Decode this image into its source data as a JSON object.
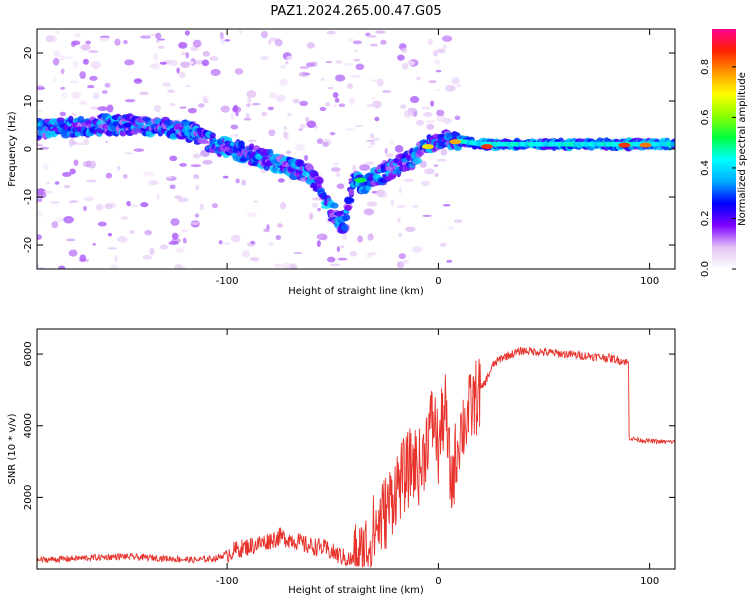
{
  "title": "PAZ1.2024.265.00.47.G05",
  "chart_data": [
    {
      "type": "heatmap",
      "xlabel": "Height of straight line (km)",
      "ylabel": "Frequency (Hz)",
      "xlim": [
        -190,
        112
      ],
      "ylim": [
        -25,
        25
      ],
      "xticks": [
        -100,
        0,
        100
      ],
      "yticks": [
        -20,
        -10,
        0,
        10,
        20
      ],
      "colorbar": {
        "label": "Normalized spectral amplitude",
        "range": [
          0,
          0.95
        ],
        "ticks": [
          0.0,
          0.2,
          0.4,
          0.6,
          0.8
        ],
        "colors": [
          "#ffffff",
          "#e2c2f4",
          "#7d00ff",
          "#0000ff",
          "#00aaff",
          "#00ffff",
          "#00ff44",
          "#88ff00",
          "#ffff00",
          "#ff9900",
          "#ff2200",
          "#ff0090"
        ]
      },
      "ridge": [
        {
          "x": -190,
          "y": 4
        },
        {
          "x": -160,
          "y": 5
        },
        {
          "x": -140,
          "y": 5
        },
        {
          "x": -120,
          "y": 4
        },
        {
          "x": -105,
          "y": 1
        },
        {
          "x": -90,
          "y": -1
        },
        {
          "x": -75,
          "y": -3
        },
        {
          "x": -62,
          "y": -5
        },
        {
          "x": -55,
          "y": -9
        },
        {
          "x": -50,
          "y": -13
        },
        {
          "x": -45,
          "y": -16
        },
        {
          "x": -40,
          "y": -6
        },
        {
          "x": -35,
          "y": -8
        },
        {
          "x": -30,
          "y": -6
        },
        {
          "x": -22,
          "y": -4
        },
        {
          "x": -12,
          "y": -2
        },
        {
          "x": -5,
          "y": 1
        },
        {
          "x": 5,
          "y": 2
        },
        {
          "x": 20,
          "y": 1
        },
        {
          "x": 60,
          "y": 1
        },
        {
          "x": 112,
          "y": 1
        }
      ],
      "peaks": [
        {
          "x": 23,
          "y": 0.5,
          "amp": 0.9
        },
        {
          "x": 88,
          "y": 0.8,
          "amp": 0.9
        },
        {
          "x": 98,
          "y": 0.8,
          "amp": 0.85
        },
        {
          "x": 8,
          "y": 1.5,
          "amp": 0.8
        },
        {
          "x": -5,
          "y": 0.5,
          "amp": 0.75
        },
        {
          "x": -37,
          "y": -6.5,
          "amp": 0.55
        }
      ]
    },
    {
      "type": "line",
      "xlabel": "Height of straight line (km)",
      "ylabel": "SNR (10 * v/v)",
      "xlim": [
        -190,
        112
      ],
      "ylim": [
        0,
        6700
      ],
      "xticks": [
        -100,
        0,
        100
      ],
      "yticks": [
        2000,
        4000,
        6000
      ],
      "color": "#e8332c",
      "series": [
        {
          "x": [
            -190,
            -170,
            -150,
            -130,
            -115,
            -105,
            -95,
            -85,
            -75,
            -68,
            -62,
            -55,
            -48,
            -42,
            -36,
            -32,
            -28,
            -24,
            -20,
            -16,
            -12,
            -8,
            -5,
            -2,
            0,
            3,
            6,
            10,
            14,
            18,
            22,
            26,
            30,
            40,
            50,
            60,
            70,
            80,
            88,
            90,
            91,
            95,
            105,
            112
          ],
          "y": [
            250,
            300,
            350,
            300,
            250,
            300,
            550,
            700,
            900,
            800,
            650,
            600,
            400,
            250,
            300,
            900,
            1300,
            1700,
            2300,
            2600,
            3000,
            2800,
            3800,
            4200,
            3300,
            4600,
            2300,
            3800,
            4300,
            4800,
            5200,
            5700,
            5900,
            6100,
            6050,
            6000,
            5950,
            5900,
            5800,
            5750,
            3650,
            3600,
            3550,
            3550
          ]
        }
      ]
    }
  ]
}
